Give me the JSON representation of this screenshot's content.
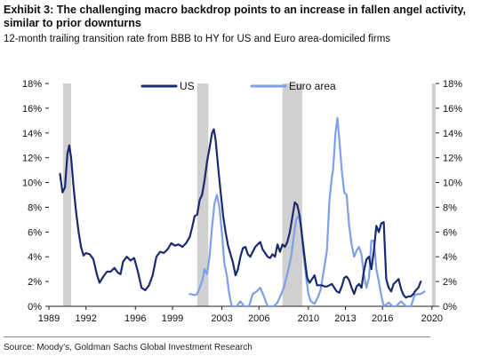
{
  "header": {
    "title": "Exhibit 3: The challenging macro backdrop points to an increase in fallen angel activity, similar to prior downturns",
    "subtitle": "12-month trailing transition rate from BBB to HY for US and Euro area-domiciled firms"
  },
  "footer": {
    "source": "Source: Moody's, Goldman Sachs Global Investment Research"
  },
  "chart_data": {
    "type": "line",
    "xlabel": "",
    "ylabel": "",
    "xlim": [
      1989,
      2020.3
    ],
    "ylim": [
      0,
      18
    ],
    "x_ticks": [
      1989,
      1992,
      1996,
      1999,
      2003,
      2006,
      2010,
      2013,
      2016,
      2020
    ],
    "y_ticks": [
      0,
      2,
      4,
      6,
      8,
      10,
      12,
      14,
      16,
      18
    ],
    "y_tick_labels": [
      "0%",
      "2%",
      "4%",
      "6%",
      "8%",
      "10%",
      "12%",
      "14%",
      "16%",
      "18%"
    ],
    "grid": false,
    "legend": "top-center",
    "recession_shading": {
      "color": "#d0d0d0",
      "periods": [
        [
          1990.15,
          1990.8
        ],
        [
          2001.0,
          2001.9
        ],
        [
          2007.9,
          2009.5
        ],
        [
          2020.0,
          2020.3
        ]
      ]
    },
    "series": [
      {
        "name": "US",
        "color": "#1a2a6e",
        "points": [
          [
            1989.9,
            10.7
          ],
          [
            1990.1,
            9.2
          ],
          [
            1990.3,
            9.6
          ],
          [
            1990.5,
            12.3
          ],
          [
            1990.65,
            13.0
          ],
          [
            1990.8,
            12.0
          ],
          [
            1991.0,
            9.6
          ],
          [
            1991.2,
            7.6
          ],
          [
            1991.4,
            6.0
          ],
          [
            1991.6,
            4.8
          ],
          [
            1991.8,
            4.1
          ],
          [
            1992.0,
            4.3
          ],
          [
            1992.3,
            4.2
          ],
          [
            1992.6,
            3.8
          ],
          [
            1992.9,
            2.5
          ],
          [
            1993.1,
            1.9
          ],
          [
            1993.4,
            2.4
          ],
          [
            1993.7,
            2.8
          ],
          [
            1994.0,
            2.8
          ],
          [
            1994.3,
            3.1
          ],
          [
            1994.6,
            2.7
          ],
          [
            1994.8,
            2.6
          ],
          [
            1995.0,
            3.6
          ],
          [
            1995.3,
            4.0
          ],
          [
            1995.6,
            3.7
          ],
          [
            1995.9,
            3.9
          ],
          [
            1996.2,
            2.8
          ],
          [
            1996.5,
            1.5
          ],
          [
            1996.8,
            1.3
          ],
          [
            1997.1,
            1.7
          ],
          [
            1997.4,
            2.5
          ],
          [
            1997.7,
            4.0
          ],
          [
            1998.0,
            4.4
          ],
          [
            1998.3,
            4.3
          ],
          [
            1998.6,
            4.6
          ],
          [
            1998.9,
            5.1
          ],
          [
            1999.2,
            4.9
          ],
          [
            1999.5,
            5.0
          ],
          [
            1999.8,
            4.8
          ],
          [
            2000.1,
            5.1
          ],
          [
            2000.4,
            5.6
          ],
          [
            2000.6,
            6.4
          ],
          [
            2000.8,
            7.3
          ],
          [
            2001.0,
            7.4
          ],
          [
            2001.2,
            8.6
          ],
          [
            2001.4,
            9.0
          ],
          [
            2001.6,
            10.2
          ],
          [
            2001.8,
            11.7
          ],
          [
            2002.0,
            12.8
          ],
          [
            2002.2,
            14.0
          ],
          [
            2002.35,
            14.3
          ],
          [
            2002.5,
            13.4
          ],
          [
            2002.7,
            11.2
          ],
          [
            2002.9,
            9.2
          ],
          [
            2003.1,
            7.3
          ],
          [
            2003.3,
            6.0
          ],
          [
            2003.5,
            4.9
          ],
          [
            2003.7,
            4.2
          ],
          [
            2003.9,
            3.5
          ],
          [
            2004.1,
            2.5
          ],
          [
            2004.3,
            3.0
          ],
          [
            2004.5,
            4.0
          ],
          [
            2004.7,
            4.7
          ],
          [
            2004.9,
            4.8
          ],
          [
            2005.1,
            4.2
          ],
          [
            2005.3,
            4.0
          ],
          [
            2005.5,
            4.4
          ],
          [
            2005.7,
            4.8
          ],
          [
            2005.9,
            5.0
          ],
          [
            2006.1,
            5.2
          ],
          [
            2006.3,
            4.6
          ],
          [
            2006.5,
            4.3
          ],
          [
            2006.7,
            4.0
          ],
          [
            2006.9,
            3.9
          ],
          [
            2007.1,
            4.2
          ],
          [
            2007.3,
            4.0
          ],
          [
            2007.5,
            5.0
          ],
          [
            2007.7,
            4.4
          ],
          [
            2007.9,
            5.0
          ],
          [
            2008.1,
            4.8
          ],
          [
            2008.3,
            5.2
          ],
          [
            2008.5,
            6.0
          ],
          [
            2008.7,
            7.2
          ],
          [
            2008.9,
            8.4
          ],
          [
            2009.1,
            8.2
          ],
          [
            2009.3,
            7.3
          ],
          [
            2009.5,
            5.6
          ],
          [
            2009.7,
            3.9
          ],
          [
            2009.9,
            2.3
          ],
          [
            2010.1,
            1.9
          ],
          [
            2010.3,
            2.2
          ],
          [
            2010.5,
            2.5
          ],
          [
            2010.7,
            1.7
          ],
          [
            2010.9,
            1.7
          ],
          [
            2011.1,
            1.7
          ],
          [
            2011.3,
            1.6
          ],
          [
            2011.5,
            1.6
          ],
          [
            2011.7,
            1.7
          ],
          [
            2011.9,
            1.8
          ],
          [
            2012.1,
            1.5
          ],
          [
            2012.3,
            1.2
          ],
          [
            2012.5,
            1.1
          ],
          [
            2012.7,
            1.6
          ],
          [
            2012.9,
            2.3
          ],
          [
            2013.1,
            2.4
          ],
          [
            2013.3,
            2.1
          ],
          [
            2013.5,
            1.5
          ],
          [
            2013.7,
            1.0
          ],
          [
            2013.9,
            1.6
          ],
          [
            2014.1,
            1.8
          ],
          [
            2014.3,
            1.5
          ],
          [
            2014.5,
            2.9
          ],
          [
            2014.7,
            3.8
          ],
          [
            2014.9,
            4.0
          ],
          [
            2015.1,
            3.0
          ],
          [
            2015.3,
            4.5
          ],
          [
            2015.5,
            6.5
          ],
          [
            2015.7,
            6.0
          ],
          [
            2015.9,
            6.7
          ],
          [
            2016.1,
            6.8
          ],
          [
            2016.3,
            2.2
          ],
          [
            2016.5,
            1.5
          ],
          [
            2016.7,
            1.2
          ],
          [
            2016.9,
            1.8
          ],
          [
            2017.1,
            2.0
          ],
          [
            2017.3,
            2.2
          ],
          [
            2017.5,
            1.4
          ],
          [
            2017.7,
            0.9
          ],
          [
            2017.9,
            0.7
          ],
          [
            2018.1,
            0.8
          ],
          [
            2018.3,
            0.8
          ],
          [
            2018.5,
            1.0
          ],
          [
            2018.7,
            1.3
          ],
          [
            2018.9,
            1.5
          ],
          [
            2019.1,
            2.0
          ]
        ]
      },
      {
        "name": "Euro area",
        "color": "#7f9fe6",
        "points": [
          [
            2000.4,
            1.0
          ],
          [
            2000.8,
            0.9
          ],
          [
            2001.0,
            1.0
          ],
          [
            2001.2,
            1.5
          ],
          [
            2001.4,
            2.0
          ],
          [
            2001.6,
            3.0
          ],
          [
            2001.8,
            2.6
          ],
          [
            2002.0,
            4.0
          ],
          [
            2002.2,
            6.4
          ],
          [
            2002.4,
            8.3
          ],
          [
            2002.6,
            9.0
          ],
          [
            2002.8,
            8.0
          ],
          [
            2003.0,
            5.9
          ],
          [
            2003.2,
            3.5
          ],
          [
            2003.4,
            2.5
          ],
          [
            2003.6,
            1.0
          ],
          [
            2003.8,
            0.0
          ],
          [
            2004.2,
            0.0
          ],
          [
            2004.5,
            0.4
          ],
          [
            2004.8,
            0.0
          ],
          [
            2005.2,
            0.0
          ],
          [
            2005.5,
            1.0
          ],
          [
            2005.8,
            1.2
          ],
          [
            2006.1,
            1.5
          ],
          [
            2006.4,
            0.8
          ],
          [
            2006.7,
            0.0
          ],
          [
            2007.2,
            0.0
          ],
          [
            2007.5,
            0.3
          ],
          [
            2007.8,
            1.0
          ],
          [
            2008.0,
            1.5
          ],
          [
            2008.3,
            2.6
          ],
          [
            2008.6,
            4.0
          ],
          [
            2008.8,
            5.5
          ],
          [
            2009.0,
            7.0
          ],
          [
            2009.2,
            7.3
          ],
          [
            2009.4,
            6.6
          ],
          [
            2009.6,
            4.2
          ],
          [
            2009.8,
            2.5
          ],
          [
            2010.0,
            1.0
          ],
          [
            2010.2,
            0.4
          ],
          [
            2010.5,
            0.2
          ],
          [
            2010.8,
            0.8
          ],
          [
            2011.0,
            1.4
          ],
          [
            2011.2,
            2.6
          ],
          [
            2011.5,
            4.5
          ],
          [
            2011.7,
            8.5
          ],
          [
            2011.9,
            10.5
          ],
          [
            2012.0,
            11.0
          ],
          [
            2012.2,
            14.0
          ],
          [
            2012.35,
            15.2
          ],
          [
            2012.5,
            13.5
          ],
          [
            2012.7,
            11.0
          ],
          [
            2012.9,
            9.2
          ],
          [
            2013.1,
            9.0
          ],
          [
            2013.3,
            6.5
          ],
          [
            2013.5,
            5.0
          ],
          [
            2013.7,
            4.0
          ],
          [
            2013.9,
            4.5
          ],
          [
            2014.1,
            4.8
          ],
          [
            2014.3,
            4.2
          ],
          [
            2014.5,
            2.5
          ],
          [
            2014.7,
            1.5
          ],
          [
            2014.9,
            2.3
          ],
          [
            2015.1,
            5.3
          ],
          [
            2015.3,
            5.3
          ],
          [
            2015.5,
            3.0
          ],
          [
            2015.7,
            2.0
          ],
          [
            2015.9,
            0.9
          ],
          [
            2016.1,
            0.0
          ],
          [
            2016.5,
            0.3
          ],
          [
            2016.8,
            0.0
          ],
          [
            2017.1,
            0.0
          ],
          [
            2017.5,
            0.4
          ],
          [
            2017.9,
            0.0
          ],
          [
            2018.3,
            0.0
          ],
          [
            2018.6,
            0.9
          ],
          [
            2018.9,
            1.0
          ],
          [
            2019.1,
            1.0
          ],
          [
            2019.4,
            1.2
          ]
        ]
      }
    ]
  }
}
